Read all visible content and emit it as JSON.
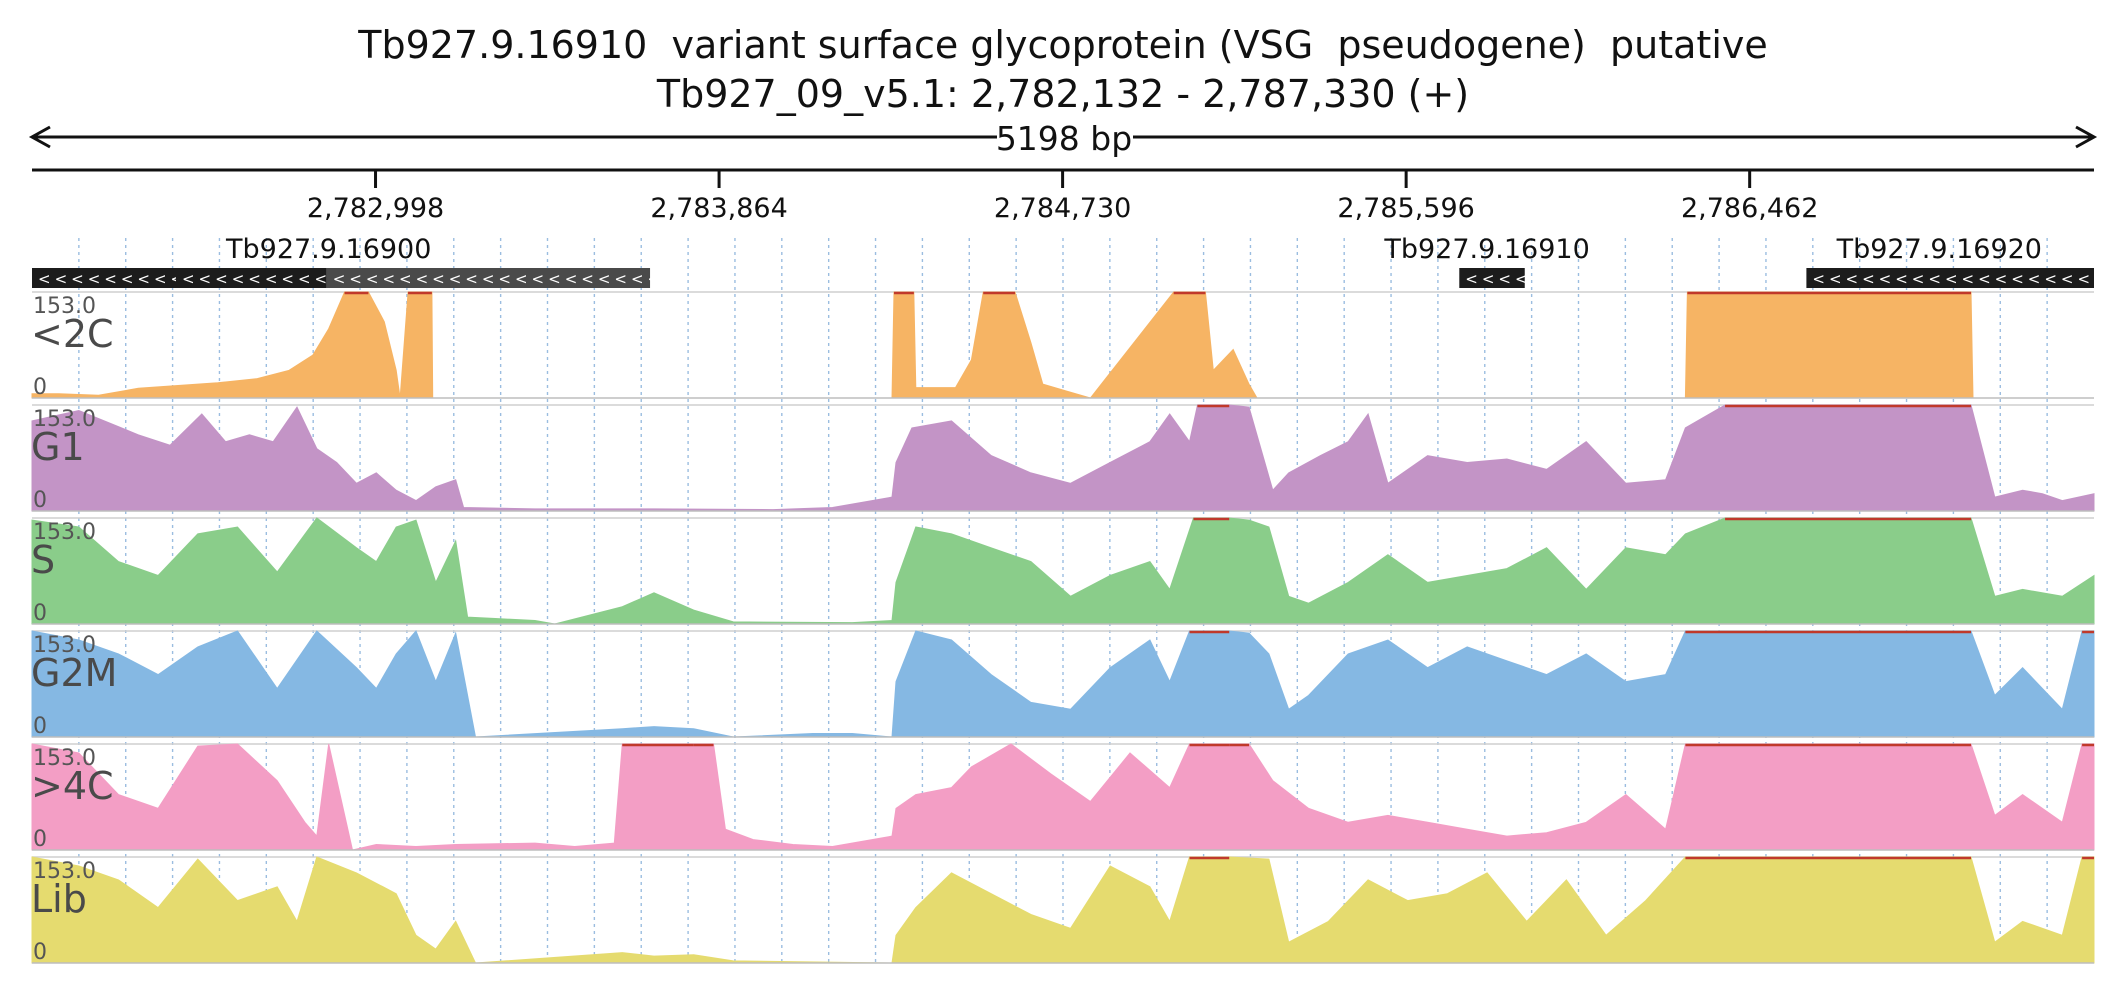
{
  "title": {
    "line1": "Tb927.9.16910  variant surface glycoprotein (VSG  pseudogene)  putative",
    "line2": "Tb927_09_v5.1: 2,782,132 - 2,787,330 (+)"
  },
  "region": {
    "start": 2782132,
    "end": 2787330,
    "length_label": "5198 bp"
  },
  "axis_ticks": [
    {
      "pos": 2782998,
      "label": "2,782,998"
    },
    {
      "pos": 2783864,
      "label": "2,783,864"
    },
    {
      "pos": 2784730,
      "label": "2,784,730"
    },
    {
      "pos": 2785596,
      "label": "2,785,596"
    },
    {
      "pos": 2786462,
      "label": "2,786,462"
    }
  ],
  "genes": [
    {
      "name": "Tb927.9.16900",
      "strand": "-",
      "label_pos": 2782880,
      "segments": [
        {
          "start": 2782132,
          "end": 2782495,
          "color": "#1c1c1c"
        },
        {
          "start": 2782495,
          "end": 2782875,
          "color": "#1c1c1c"
        },
        {
          "start": 2782875,
          "end": 2783690,
          "color": "#4a4a4a"
        }
      ]
    },
    {
      "name": "Tb927.9.16910",
      "strand": "-",
      "label_pos": 2785800,
      "segments": [
        {
          "start": 2785730,
          "end": 2785895,
          "color": "#1c1c1c"
        }
      ]
    },
    {
      "name": "Tb927.9.16920",
      "strand": "-",
      "label_pos": 2786940,
      "segments": [
        {
          "start": 2786605,
          "end": 2787330,
          "color": "#1c1c1c"
        }
      ]
    }
  ],
  "tracks": [
    {
      "name": "<2C",
      "color": "#f6b464",
      "max_label": "153.0",
      "min_label": "0",
      "max": 153,
      "points": [
        [
          2782132,
          6
        ],
        [
          2782200,
          6
        ],
        [
          2782300,
          4
        ],
        [
          2782400,
          14
        ],
        [
          2782500,
          18
        ],
        [
          2782600,
          22
        ],
        [
          2782700,
          28
        ],
        [
          2782780,
          40
        ],
        [
          2782840,
          62
        ],
        [
          2782880,
          100
        ],
        [
          2782920,
          153
        ],
        [
          2782980,
          153
        ],
        [
          2783020,
          110
        ],
        [
          2783050,
          40
        ],
        [
          2783060,
          0
        ],
        [
          2783080,
          153
        ],
        [
          2783140,
          153
        ],
        [
          2783142,
          0
        ],
        [
          2784300,
          0
        ],
        [
          2784305,
          153
        ],
        [
          2784355,
          153
        ],
        [
          2784360,
          15
        ],
        [
          2784460,
          15
        ],
        [
          2784500,
          55
        ],
        [
          2784530,
          153
        ],
        [
          2784610,
          153
        ],
        [
          2784650,
          80
        ],
        [
          2784680,
          20
        ],
        [
          2784740,
          10
        ],
        [
          2784800,
          0
        ],
        [
          2785010,
          153
        ],
        [
          2785090,
          153
        ],
        [
          2785110,
          40
        ],
        [
          2785160,
          70
        ],
        [
          2785200,
          20
        ],
        [
          2785220,
          0
        ],
        [
          2786300,
          0
        ],
        [
          2786305,
          153
        ],
        [
          2787020,
          153
        ],
        [
          2787025,
          0
        ],
        [
          2787330,
          0
        ]
      ]
    },
    {
      "name": "G1",
      "color": "#c394c6",
      "max_label": "153.0",
      "min_label": "0",
      "max": 153,
      "points": [
        [
          2782132,
          130
        ],
        [
          2782250,
          145
        ],
        [
          2782400,
          110
        ],
        [
          2782480,
          95
        ],
        [
          2782560,
          140
        ],
        [
          2782620,
          100
        ],
        [
          2782680,
          110
        ],
        [
          2782740,
          100
        ],
        [
          2782800,
          150
        ],
        [
          2782850,
          90
        ],
        [
          2782900,
          70
        ],
        [
          2782950,
          40
        ],
        [
          2783000,
          55
        ],
        [
          2783050,
          30
        ],
        [
          2783100,
          15
        ],
        [
          2783150,
          35
        ],
        [
          2783200,
          45
        ],
        [
          2783220,
          5
        ],
        [
          2783400,
          3
        ],
        [
          2783700,
          3
        ],
        [
          2784000,
          2
        ],
        [
          2784150,
          5
        ],
        [
          2784300,
          20
        ],
        [
          2784310,
          70
        ],
        [
          2784350,
          120
        ],
        [
          2784450,
          130
        ],
        [
          2784550,
          80
        ],
        [
          2784650,
          55
        ],
        [
          2784750,
          40
        ],
        [
          2784850,
          70
        ],
        [
          2784950,
          100
        ],
        [
          2785000,
          140
        ],
        [
          2785050,
          100
        ],
        [
          2785070,
          153
        ],
        [
          2785150,
          153
        ],
        [
          2785200,
          150
        ],
        [
          2785260,
          30
        ],
        [
          2785300,
          55
        ],
        [
          2785380,
          80
        ],
        [
          2785450,
          100
        ],
        [
          2785500,
          140
        ],
        [
          2785550,
          40
        ],
        [
          2785650,
          80
        ],
        [
          2785750,
          70
        ],
        [
          2785850,
          75
        ],
        [
          2785950,
          60
        ],
        [
          2786050,
          100
        ],
        [
          2786150,
          40
        ],
        [
          2786250,
          45
        ],
        [
          2786300,
          120
        ],
        [
          2786400,
          153
        ],
        [
          2787020,
          153
        ],
        [
          2787080,
          20
        ],
        [
          2787150,
          30
        ],
        [
          2787200,
          25
        ],
        [
          2787250,
          15
        ],
        [
          2787330,
          25
        ]
      ]
    },
    {
      "name": "S",
      "color": "#8acd8a",
      "max_label": "153.0",
      "min_label": "0",
      "max": 153,
      "points": [
        [
          2782132,
          150
        ],
        [
          2782250,
          140
        ],
        [
          2782350,
          90
        ],
        [
          2782450,
          70
        ],
        [
          2782550,
          130
        ],
        [
          2782650,
          140
        ],
        [
          2782750,
          75
        ],
        [
          2782850,
          153
        ],
        [
          2782950,
          110
        ],
        [
          2783000,
          90
        ],
        [
          2783050,
          140
        ],
        [
          2783100,
          150
        ],
        [
          2783150,
          60
        ],
        [
          2783200,
          120
        ],
        [
          2783230,
          10
        ],
        [
          2783300,
          8
        ],
        [
          2783400,
          5
        ],
        [
          2783450,
          0
        ],
        [
          2783620,
          25
        ],
        [
          2783700,
          45
        ],
        [
          2783800,
          20
        ],
        [
          2783900,
          3
        ],
        [
          2784200,
          2
        ],
        [
          2784300,
          5
        ],
        [
          2784310,
          60
        ],
        [
          2784360,
          140
        ],
        [
          2784450,
          130
        ],
        [
          2784550,
          110
        ],
        [
          2784650,
          90
        ],
        [
          2784750,
          40
        ],
        [
          2784850,
          70
        ],
        [
          2784950,
          90
        ],
        [
          2785000,
          50
        ],
        [
          2785060,
          153
        ],
        [
          2785150,
          153
        ],
        [
          2785200,
          150
        ],
        [
          2785250,
          140
        ],
        [
          2785300,
          40
        ],
        [
          2785350,
          30
        ],
        [
          2785450,
          60
        ],
        [
          2785550,
          100
        ],
        [
          2785650,
          60
        ],
        [
          2785750,
          70
        ],
        [
          2785850,
          80
        ],
        [
          2785950,
          110
        ],
        [
          2786050,
          50
        ],
        [
          2786150,
          110
        ],
        [
          2786250,
          100
        ],
        [
          2786300,
          130
        ],
        [
          2786400,
          153
        ],
        [
          2787020,
          153
        ],
        [
          2787080,
          40
        ],
        [
          2787150,
          50
        ],
        [
          2787250,
          40
        ],
        [
          2787330,
          70
        ]
      ]
    },
    {
      "name": "G2M",
      "color": "#85b8e3",
      "max_label": "153.0",
      "min_label": "0",
      "max": 153,
      "points": [
        [
          2782132,
          153
        ],
        [
          2782250,
          140
        ],
        [
          2782350,
          120
        ],
        [
          2782450,
          90
        ],
        [
          2782550,
          130
        ],
        [
          2782650,
          153
        ],
        [
          2782750,
          70
        ],
        [
          2782850,
          153
        ],
        [
          2782950,
          100
        ],
        [
          2783000,
          70
        ],
        [
          2783050,
          120
        ],
        [
          2783100,
          153
        ],
        [
          2783150,
          80
        ],
        [
          2783200,
          150
        ],
        [
          2783250,
          0
        ],
        [
          2783620,
          12
        ],
        [
          2783700,
          15
        ],
        [
          2783800,
          12
        ],
        [
          2783900,
          0
        ],
        [
          2784100,
          5
        ],
        [
          2784200,
          5
        ],
        [
          2784300,
          0
        ],
        [
          2784310,
          80
        ],
        [
          2784360,
          153
        ],
        [
          2784450,
          140
        ],
        [
          2784550,
          90
        ],
        [
          2784650,
          50
        ],
        [
          2784750,
          40
        ],
        [
          2784850,
          100
        ],
        [
          2784950,
          140
        ],
        [
          2785000,
          80
        ],
        [
          2785050,
          153
        ],
        [
          2785150,
          153
        ],
        [
          2785200,
          150
        ],
        [
          2785250,
          120
        ],
        [
          2785300,
          40
        ],
        [
          2785350,
          60
        ],
        [
          2785450,
          120
        ],
        [
          2785550,
          140
        ],
        [
          2785650,
          100
        ],
        [
          2785750,
          130
        ],
        [
          2785850,
          110
        ],
        [
          2785950,
          90
        ],
        [
          2786050,
          120
        ],
        [
          2786150,
          80
        ],
        [
          2786250,
          90
        ],
        [
          2786300,
          153
        ],
        [
          2787020,
          153
        ],
        [
          2787080,
          60
        ],
        [
          2787150,
          100
        ],
        [
          2787250,
          40
        ],
        [
          2787300,
          153
        ],
        [
          2787330,
          153
        ]
      ]
    },
    {
      "name": ">4C",
      "color": "#f39ec5",
      "max_label": "153.0",
      "min_label": "0",
      "max": 153,
      "points": [
        [
          2782132,
          153
        ],
        [
          2782250,
          140
        ],
        [
          2782350,
          80
        ],
        [
          2782450,
          60
        ],
        [
          2782550,
          150
        ],
        [
          2782650,
          153
        ],
        [
          2782750,
          100
        ],
        [
          2782820,
          40
        ],
        [
          2782850,
          20
        ],
        [
          2782880,
          153
        ],
        [
          2782940,
          0
        ],
        [
          2783000,
          8
        ],
        [
          2783100,
          5
        ],
        [
          2783200,
          8
        ],
        [
          2783400,
          10
        ],
        [
          2783500,
          5
        ],
        [
          2783600,
          10
        ],
        [
          2783620,
          153
        ],
        [
          2783800,
          153
        ],
        [
          2783850,
          153
        ],
        [
          2783880,
          30
        ],
        [
          2783950,
          15
        ],
        [
          2784050,
          8
        ],
        [
          2784150,
          5
        ],
        [
          2784300,
          20
        ],
        [
          2784310,
          60
        ],
        [
          2784360,
          80
        ],
        [
          2784450,
          90
        ],
        [
          2784500,
          120
        ],
        [
          2784600,
          153
        ],
        [
          2784700,
          110
        ],
        [
          2784800,
          70
        ],
        [
          2784900,
          140
        ],
        [
          2785000,
          90
        ],
        [
          2785050,
          153
        ],
        [
          2785150,
          153
        ],
        [
          2785200,
          153
        ],
        [
          2785260,
          100
        ],
        [
          2785350,
          60
        ],
        [
          2785450,
          40
        ],
        [
          2785550,
          50
        ],
        [
          2785650,
          40
        ],
        [
          2785750,
          30
        ],
        [
          2785850,
          20
        ],
        [
          2785950,
          25
        ],
        [
          2786050,
          40
        ],
        [
          2786150,
          80
        ],
        [
          2786250,
          30
        ],
        [
          2786300,
          153
        ],
        [
          2787020,
          153
        ],
        [
          2787080,
          50
        ],
        [
          2787150,
          80
        ],
        [
          2787250,
          40
        ],
        [
          2787300,
          153
        ],
        [
          2787330,
          153
        ]
      ]
    },
    {
      "name": "Lib",
      "color": "#e5db6f",
      "max_label": "153.0",
      "min_label": "0",
      "max": 153,
      "points": [
        [
          2782132,
          153
        ],
        [
          2782250,
          140
        ],
        [
          2782350,
          120
        ],
        [
          2782450,
          80
        ],
        [
          2782550,
          150
        ],
        [
          2782650,
          90
        ],
        [
          2782750,
          110
        ],
        [
          2782800,
          60
        ],
        [
          2782850,
          153
        ],
        [
          2782950,
          130
        ],
        [
          2783050,
          100
        ],
        [
          2783100,
          40
        ],
        [
          2783150,
          20
        ],
        [
          2783200,
          60
        ],
        [
          2783250,
          0
        ],
        [
          2783620,
          15
        ],
        [
          2783700,
          10
        ],
        [
          2783800,
          12
        ],
        [
          2783900,
          3
        ],
        [
          2784300,
          0
        ],
        [
          2784310,
          40
        ],
        [
          2784360,
          80
        ],
        [
          2784450,
          130
        ],
        [
          2784550,
          100
        ],
        [
          2784650,
          70
        ],
        [
          2784750,
          50
        ],
        [
          2784850,
          140
        ],
        [
          2784950,
          110
        ],
        [
          2785000,
          60
        ],
        [
          2785050,
          153
        ],
        [
          2785150,
          153
        ],
        [
          2785250,
          150
        ],
        [
          2785300,
          30
        ],
        [
          2785400,
          60
        ],
        [
          2785500,
          120
        ],
        [
          2785600,
          90
        ],
        [
          2785700,
          100
        ],
        [
          2785800,
          130
        ],
        [
          2785900,
          60
        ],
        [
          2786000,
          120
        ],
        [
          2786100,
          40
        ],
        [
          2786200,
          90
        ],
        [
          2786300,
          153
        ],
        [
          2787020,
          153
        ],
        [
          2787080,
          30
        ],
        [
          2787150,
          60
        ],
        [
          2787250,
          40
        ],
        [
          2787300,
          153
        ],
        [
          2787330,
          153
        ]
      ]
    }
  ]
}
